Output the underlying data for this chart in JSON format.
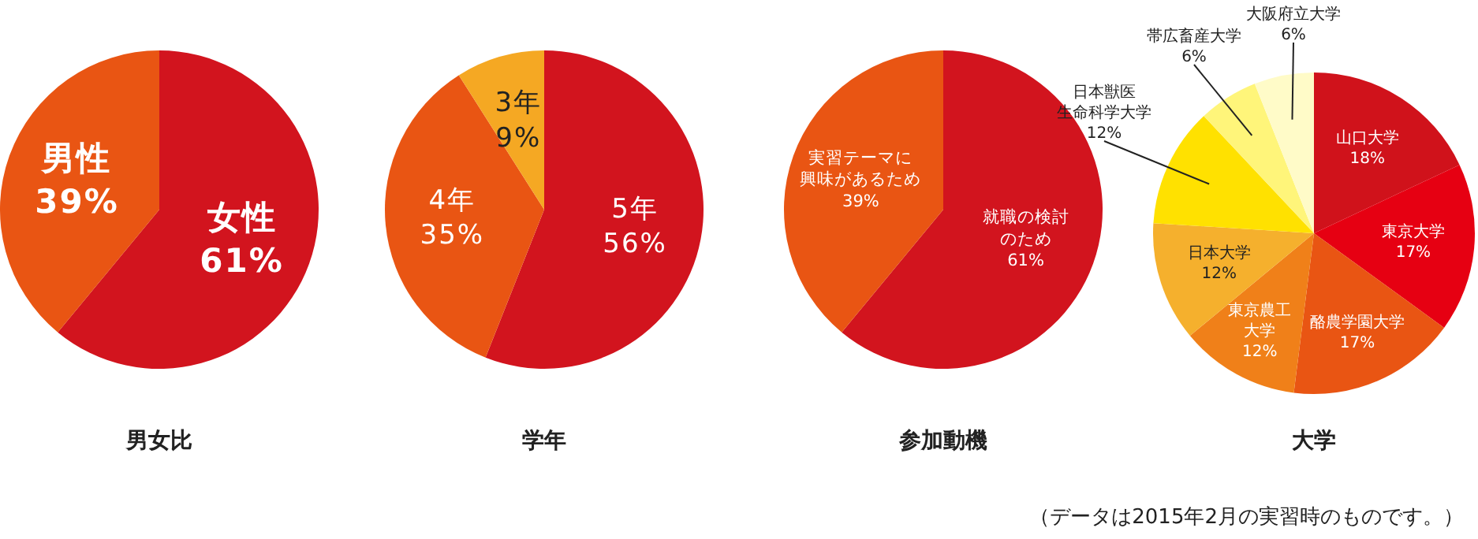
{
  "chart_data": [
    {
      "type": "pie",
      "title": "男女比",
      "categories": [
        "女性",
        "男性"
      ],
      "values": [
        61,
        39
      ],
      "value_labels": [
        "61%",
        "39%"
      ],
      "colors": [
        "#d2141e",
        "#e95513"
      ]
    },
    {
      "type": "pie",
      "title": "学年",
      "categories": [
        "5年",
        "4年",
        "3年"
      ],
      "values": [
        56,
        35,
        9
      ],
      "value_labels": [
        "56%",
        "35%",
        "9%"
      ],
      "colors": [
        "#d2141e",
        "#e95513",
        "#f5a823"
      ]
    },
    {
      "type": "pie",
      "title": "参加動機",
      "categories": [
        "就職の検討のため",
        "実習テーマに興味があるため"
      ],
      "values": [
        61,
        39
      ],
      "value_labels": [
        "61%",
        "39%"
      ],
      "colors": [
        "#d2141e",
        "#e95513"
      ]
    },
    {
      "type": "pie",
      "title": "大学",
      "categories": [
        "山口大学",
        "東京大学",
        "酪農学園大学",
        "東京農工大学",
        "日本大学",
        "日本獣医生命科学大学",
        "帯広畜産大学",
        "大阪府立大学"
      ],
      "values": [
        18,
        17,
        17,
        12,
        12,
        12,
        6,
        6
      ],
      "value_labels": [
        "18%",
        "17%",
        "17%",
        "12%",
        "12%",
        "12%",
        "6%",
        "6%"
      ],
      "colors": [
        "#d0121b",
        "#e60012",
        "#e95513",
        "#f08019",
        "#f5b02d",
        "#ffe100",
        "#fff57a",
        "#fffbc8"
      ],
      "annotations": [
        "（データは2015年2月の実習時のものです。）"
      ]
    }
  ]
}
